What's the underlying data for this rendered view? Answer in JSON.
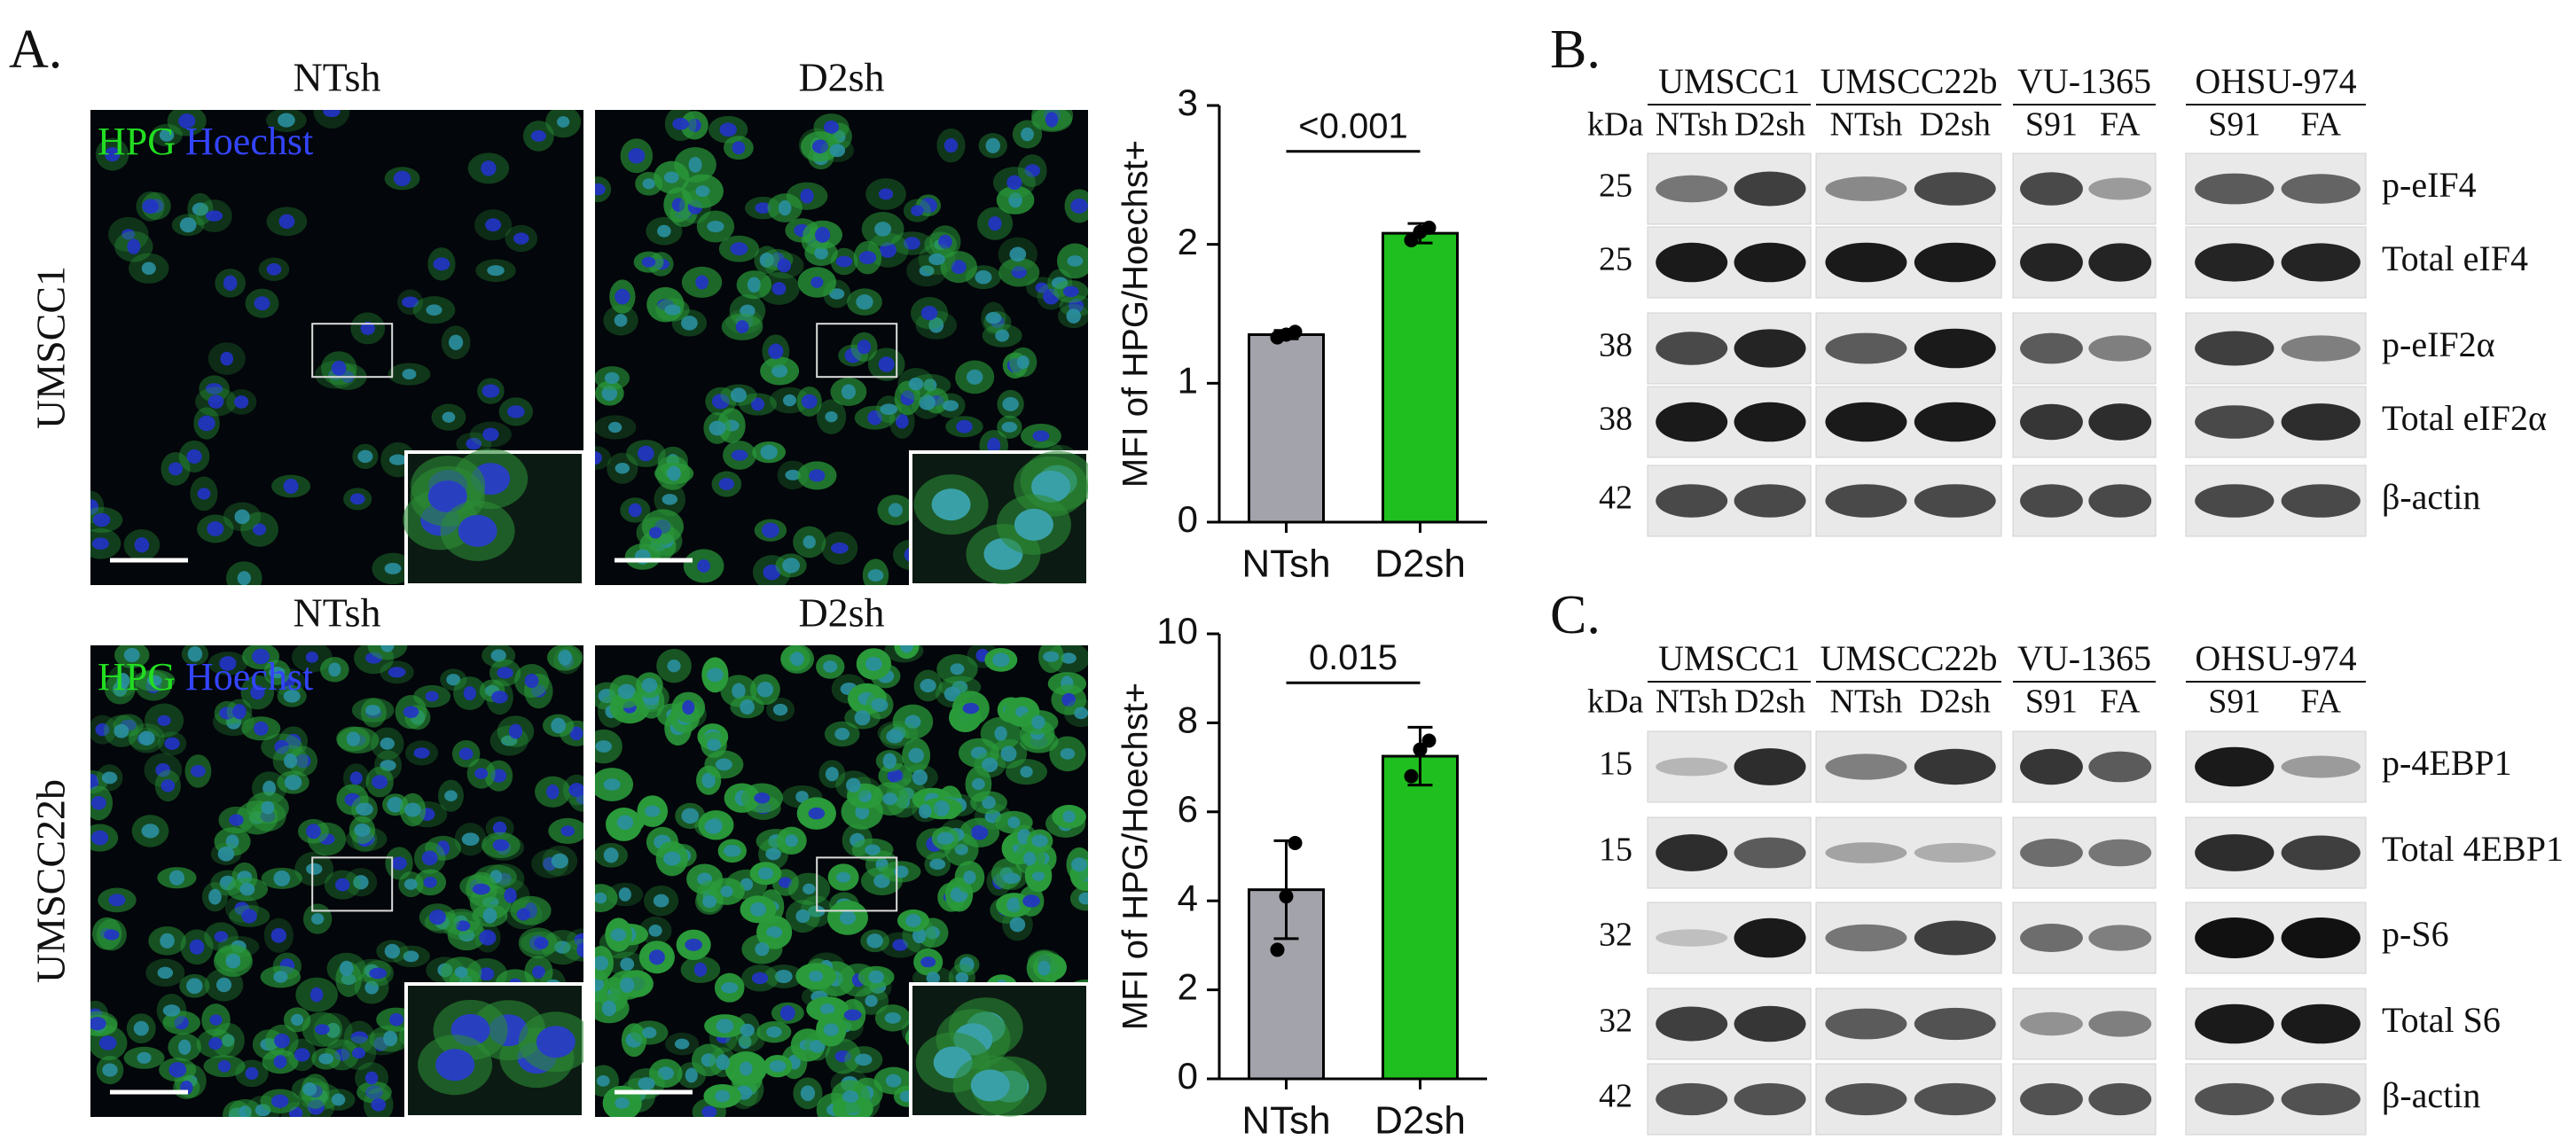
{
  "panel_labels": [
    "A.",
    "B.",
    "C."
  ],
  "panel_a": {
    "columns": [
      "NTsh",
      "D2sh"
    ],
    "rows": [
      "UMSCC1",
      "UMSCC22b"
    ],
    "stain_labels": [
      "HPG",
      "Hoechst"
    ]
  },
  "chart_data": [
    {
      "type": "bar",
      "ylabel": "MFI of HPG/Hoechst+",
      "categories": [
        "NTsh",
        "D2sh"
      ],
      "values": [
        1.35,
        2.08
      ],
      "errors": [
        0.03,
        0.07
      ],
      "points": [
        [
          1.33,
          1.35,
          1.37
        ],
        [
          2.03,
          2.09,
          2.12
        ]
      ],
      "colors": [
        "#a3a3ab",
        "#1fbf1f"
      ],
      "ylim": [
        0,
        3
      ],
      "yticks": [
        0,
        1,
        2,
        3
      ],
      "annotation": "<0.001"
    },
    {
      "type": "bar",
      "ylabel": "MFI of HPG/Hoechst+",
      "categories": [
        "NTsh",
        "D2sh"
      ],
      "values": [
        4.25,
        7.25
      ],
      "errors": [
        1.1,
        0.65
      ],
      "points": [
        [
          2.9,
          4.1,
          5.3
        ],
        [
          6.8,
          7.4,
          7.6
        ]
      ],
      "colors": [
        "#a3a3ab",
        "#1fbf1f"
      ],
      "ylim": [
        0,
        10
      ],
      "yticks": [
        0,
        2,
        4,
        6,
        8,
        10
      ],
      "annotation": "0.015"
    }
  ],
  "panel_b": {
    "kda_label": "kDa",
    "groups": [
      {
        "name": "UMSCC1",
        "lanes": [
          "NTsh",
          "D2sh"
        ]
      },
      {
        "name": "UMSCC22b",
        "lanes": [
          "NTsh",
          "D2sh"
        ]
      },
      {
        "name": "VU-1365",
        "lanes": [
          "S91",
          "FA"
        ]
      },
      {
        "name": "OHSU-974",
        "lanes": [
          "S91",
          "FA"
        ]
      }
    ],
    "rows": [
      {
        "kda": "25",
        "label": "p-eIF4"
      },
      {
        "kda": "25",
        "label": "Total eIF4"
      },
      {
        "kda": "38",
        "label": "p-eIF2α"
      },
      {
        "kda": "38",
        "label": "Total eIF2α"
      },
      {
        "kda": "42",
        "label": "β-actin"
      }
    ]
  },
  "panel_c": {
    "kda_label": "kDa",
    "groups": [
      {
        "name": "UMSCC1",
        "lanes": [
          "NTsh",
          "D2sh"
        ]
      },
      {
        "name": "UMSCC22b",
        "lanes": [
          "NTsh",
          "D2sh"
        ]
      },
      {
        "name": "VU-1365",
        "lanes": [
          "S91",
          "FA"
        ]
      },
      {
        "name": "OHSU-974",
        "lanes": [
          "S91",
          "FA"
        ]
      }
    ],
    "rows": [
      {
        "kda": "15",
        "label": "p-4EBP1"
      },
      {
        "kda": "15",
        "label": "Total 4EBP1"
      },
      {
        "kda": "32",
        "label": "p-S6"
      },
      {
        "kda": "32",
        "label": "Total S6"
      },
      {
        "kda": "42",
        "label": "β-actin"
      }
    ]
  }
}
